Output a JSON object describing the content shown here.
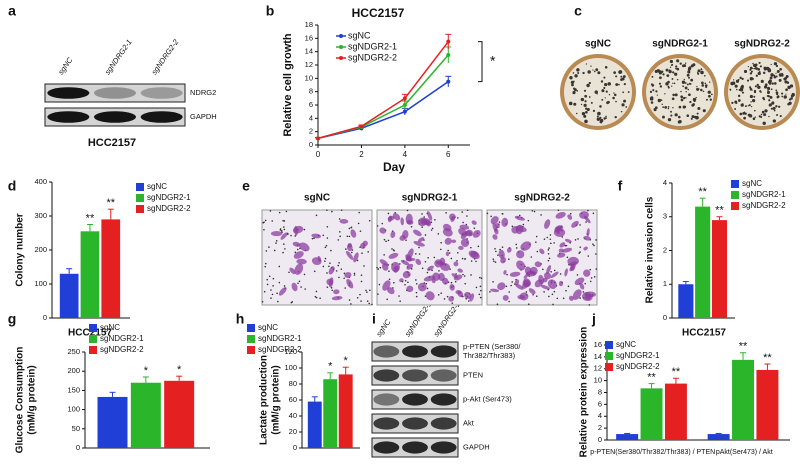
{
  "blots": [
    {
      "letter": "a",
      "lanes": [
        "sgNC",
        "sgNDRG2-1",
        "sgNDRG2-2"
      ],
      "rows": [
        "NDRG2",
        "GAPDH"
      ],
      "caption": "HCC2157"
    },
    {
      "letter": "i",
      "lanes": [
        "sgNC",
        "sgNDRG2-1",
        "sgNDRG2-2"
      ],
      "rows": [
        [
          "p-PTEN (Ser380/",
          "Thr382/Thr383)"
        ],
        "PTEN",
        "p-Akt (Ser473)",
        "Akt",
        "GAPDH"
      ]
    }
  ],
  "images": [
    {
      "letter": "c",
      "labels": [
        "sgNC",
        "sgNDRG2-1",
        "sgNDRG2-2"
      ]
    },
    {
      "letter": "e",
      "labels": [
        "sgNC",
        "sgNDRG2-1",
        "sgNDRG2-2"
      ]
    }
  ],
  "chart_data": [
    {
      "type": "line",
      "letter": "b",
      "title": "HCC2157",
      "ylabel": "Relative cell growth",
      "xlabel": "Day",
      "x": [
        0,
        2,
        4,
        6
      ],
      "xlim": [
        0,
        7
      ],
      "xticks": [
        0,
        2,
        4,
        6
      ],
      "ylim": [
        0,
        18
      ],
      "yticks": [
        0,
        2,
        4,
        6,
        8,
        10,
        12,
        14,
        16,
        18
      ],
      "annotation": "*",
      "series": [
        {
          "name": "sgNC",
          "color": "#1f3fd6",
          "values": [
            1,
            2.5,
            5,
            9.5
          ],
          "errors": [
            0.1,
            0.2,
            0.5,
            0.8
          ]
        },
        {
          "name": "sgNDGR2-1",
          "color": "#2ab52a",
          "values": [
            1,
            2.7,
            6,
            13.5
          ],
          "errors": [
            0.1,
            0.2,
            0.6,
            1.2
          ]
        },
        {
          "name": "sgNDGR2-2",
          "color": "#e42020",
          "values": [
            1,
            2.8,
            7,
            15.5
          ],
          "errors": [
            0.1,
            0.2,
            0.6,
            1.1
          ]
        }
      ]
    },
    {
      "type": "bar",
      "letter": "d",
      "ylabel": "Colony number",
      "xlabel": "HCC2157",
      "ylim": [
        0,
        400
      ],
      "yticks": [
        0,
        100,
        200,
        300,
        400
      ],
      "series": [
        {
          "name": "sgNC",
          "color": "#1f3fd6",
          "values": [
            130
          ],
          "errors": [
            15
          ]
        },
        {
          "name": "sgNDGR2-1",
          "color": "#2ab52a",
          "values": [
            255
          ],
          "errors": [
            20
          ],
          "annotations": [
            "**"
          ]
        },
        {
          "name": "sgNDGR2-2",
          "color": "#e42020",
          "values": [
            290
          ],
          "errors": [
            30
          ],
          "annotations": [
            "**"
          ]
        }
      ]
    },
    {
      "type": "bar",
      "letter": "f",
      "ylabel": "Relative invasion cells",
      "xlabel": "HCC2157",
      "ylim": [
        0,
        4
      ],
      "yticks": [
        0,
        1,
        2,
        3,
        4
      ],
      "series": [
        {
          "name": "sgNC",
          "color": "#1f3fd6",
          "values": [
            1
          ],
          "errors": [
            0.08
          ]
        },
        {
          "name": "sgNDGR2-1",
          "color": "#2ab52a",
          "values": [
            3.3
          ],
          "errors": [
            0.25
          ],
          "annotations": [
            "**"
          ]
        },
        {
          "name": "sgNDGR2-2",
          "color": "#e42020",
          "values": [
            2.9
          ],
          "errors": [
            0.1
          ],
          "annotations": [
            "**"
          ]
        }
      ]
    },
    {
      "type": "bar",
      "letter": "g",
      "ylabel": [
        "Glucose Consumption",
        "(mM/g protein)"
      ],
      "ylim": [
        0,
        250
      ],
      "yticks": [
        0,
        50,
        100,
        150,
        200,
        250
      ],
      "series": [
        {
          "name": "sgNC",
          "color": "#1f3fd6",
          "values": [
            133
          ],
          "errors": [
            12
          ]
        },
        {
          "name": "sgNDGR2-1",
          "color": "#2ab52a",
          "values": [
            170
          ],
          "errors": [
            15
          ],
          "annotations": [
            "*"
          ]
        },
        {
          "name": "sgNDGR2-2",
          "color": "#e42020",
          "values": [
            175
          ],
          "errors": [
            12
          ],
          "annotations": [
            "*"
          ]
        }
      ]
    },
    {
      "type": "bar",
      "letter": "h",
      "ylabel": [
        "Lactate production",
        "(mM/g protein)"
      ],
      "ylim": [
        0,
        120
      ],
      "yticks": [
        0,
        20,
        40,
        60,
        80,
        100,
        120
      ],
      "series": [
        {
          "name": "sgNC",
          "color": "#1f3fd6",
          "values": [
            58
          ],
          "errors": [
            6
          ]
        },
        {
          "name": "sgNDGR2-1",
          "color": "#2ab52a",
          "values": [
            86
          ],
          "errors": [
            8
          ],
          "annotations": [
            "*"
          ]
        },
        {
          "name": "sgNDGR2-2",
          "color": "#e42020",
          "values": [
            92
          ],
          "errors": [
            9
          ],
          "annotations": [
            "*"
          ]
        }
      ]
    },
    {
      "type": "bar",
      "letter": "j",
      "ylabel": "Relative protein expression",
      "ylim": [
        0,
        16
      ],
      "yticks": [
        0,
        2,
        4,
        6,
        8,
        10,
        12,
        14,
        16
      ],
      "categories": [
        "p-PTEN(Ser380/Thr382/Thr383) / PTEN",
        "pAkt(Ser473) / Akt"
      ],
      "series": [
        {
          "name": "sgNC",
          "color": "#1f3fd6",
          "values": [
            1,
            1
          ],
          "errors": [
            0.1,
            0.1
          ]
        },
        {
          "name": "sgNDGR2-1",
          "color": "#2ab52a",
          "values": [
            8.7,
            13.5
          ],
          "errors": [
            0.8,
            1.2
          ],
          "annotations": [
            "**",
            "**"
          ]
        },
        {
          "name": "sgNDGR2-2",
          "color": "#e42020",
          "values": [
            9.5,
            11.8
          ],
          "errors": [
            0.9,
            1
          ],
          "annotations": [
            "**",
            "**"
          ]
        }
      ]
    }
  ]
}
